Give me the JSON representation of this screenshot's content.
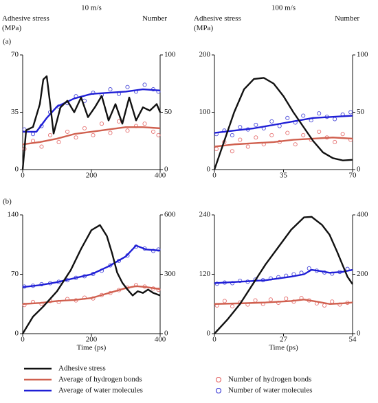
{
  "chart_data": [
    {
      "type": "line",
      "title": "10 m/s",
      "panel_label": "(a)",
      "ylabel": "Adhesive stress (MPa)",
      "y2label": "Number",
      "xlim": [
        0,
        400
      ],
      "xticks": [
        0,
        200,
        400
      ],
      "ylim": [
        0,
        70
      ],
      "yticks": [
        0,
        35,
        70
      ],
      "y2lim": [
        0,
        100
      ],
      "y2ticks": [
        0,
        50,
        100
      ],
      "series": [
        {
          "name": "Adhesive stress",
          "type": "line",
          "color": "#111111",
          "x": [
            0,
            10,
            30,
            50,
            60,
            70,
            80,
            90,
            110,
            130,
            150,
            170,
            190,
            210,
            230,
            250,
            270,
            290,
            310,
            330,
            350,
            370,
            390,
            400
          ],
          "values": [
            0,
            24,
            26,
            40,
            55,
            57,
            40,
            22,
            38,
            42,
            35,
            44,
            32,
            38,
            45,
            30,
            40,
            28,
            44,
            30,
            38,
            36,
            40,
            35
          ]
        },
        {
          "name": "Average of hydrogen bonds",
          "type": "line",
          "color": "#d0604f",
          "axis": "y2",
          "x": [
            0,
            50,
            100,
            150,
            200,
            250,
            300,
            350,
            400
          ],
          "values": [
            22,
            24,
            27,
            31,
            33,
            35,
            37,
            37,
            36
          ]
        },
        {
          "name": "Average of water molecules",
          "type": "line",
          "color": "#1f1fd6",
          "axis": "y2",
          "x": [
            0,
            40,
            70,
            100,
            150,
            200,
            250,
            300,
            350,
            400
          ],
          "values": [
            33,
            33,
            45,
            55,
            62,
            66,
            67,
            68,
            70,
            69
          ]
        },
        {
          "name": "Number of hydrogen bonds",
          "type": "scatter",
          "color": "#e05050",
          "axis": "y2",
          "x": [
            5,
            30,
            55,
            80,
            105,
            130,
            155,
            180,
            205,
            230,
            255,
            280,
            305,
            330,
            355,
            380,
            395
          ],
          "values": [
            18,
            25,
            20,
            30,
            24,
            33,
            28,
            36,
            30,
            40,
            32,
            42,
            34,
            38,
            40,
            33,
            30
          ]
        },
        {
          "name": "Number of water molecules",
          "type": "scatter",
          "color": "#2020d0",
          "axis": "y2",
          "x": [
            5,
            30,
            55,
            80,
            105,
            130,
            155,
            180,
            205,
            230,
            255,
            280,
            305,
            330,
            355,
            380,
            395
          ],
          "values": [
            35,
            31,
            38,
            50,
            55,
            58,
            64,
            60,
            67,
            65,
            70,
            66,
            72,
            68,
            74,
            70,
            68
          ]
        }
      ]
    },
    {
      "type": "line",
      "title": "100 m/s",
      "ylabel": "Adhesive stress (MPa)",
      "y2label": "Number",
      "xlim": [
        0,
        70
      ],
      "xticks": [
        0,
        35,
        70
      ],
      "ylim": [
        0,
        200
      ],
      "yticks": [
        0,
        100,
        200
      ],
      "y2lim": [
        0,
        100
      ],
      "y2ticks": [
        0,
        50,
        100
      ],
      "series": [
        {
          "type": "line",
          "color": "#111111",
          "x": [
            0,
            5,
            10,
            15,
            20,
            25,
            30,
            35,
            40,
            45,
            50,
            55,
            60,
            65,
            70
          ],
          "values": [
            0,
            50,
            100,
            140,
            158,
            160,
            150,
            128,
            100,
            75,
            50,
            30,
            20,
            16,
            17
          ]
        },
        {
          "type": "line",
          "color": "#d0604f",
          "axis": "y2",
          "x": [
            0,
            10,
            20,
            30,
            40,
            50,
            60,
            70
          ],
          "values": [
            20,
            22,
            23,
            24,
            26,
            27,
            28,
            27
          ]
        },
        {
          "type": "line",
          "color": "#1f1fd6",
          "axis": "y2",
          "x": [
            0,
            10,
            20,
            30,
            40,
            50,
            60,
            70
          ],
          "values": [
            32,
            34,
            36,
            39,
            42,
            45,
            46,
            47
          ]
        },
        {
          "type": "scatter",
          "color": "#e05050",
          "axis": "y2",
          "x": [
            1,
            5,
            9,
            13,
            17,
            21,
            25,
            29,
            33,
            37,
            41,
            45,
            49,
            53,
            57,
            61,
            65,
            69
          ],
          "values": [
            18,
            24,
            16,
            26,
            20,
            28,
            22,
            30,
            24,
            32,
            22,
            30,
            26,
            33,
            28,
            24,
            31,
            26
          ]
        },
        {
          "type": "scatter",
          "color": "#2020d0",
          "axis": "y2",
          "x": [
            1,
            5,
            9,
            13,
            17,
            21,
            25,
            29,
            33,
            37,
            41,
            45,
            49,
            53,
            57,
            61,
            65,
            69
          ],
          "values": [
            31,
            34,
            30,
            37,
            35,
            39,
            36,
            42,
            38,
            45,
            41,
            47,
            43,
            49,
            46,
            44,
            48,
            50
          ]
        }
      ]
    },
    {
      "type": "line",
      "panel_label": "(b)",
      "xlabel": "Time (ps)",
      "xlim": [
        0,
        400
      ],
      "xticks": [
        0,
        200,
        400
      ],
      "ylim": [
        0,
        140
      ],
      "yticks": [
        0,
        70,
        140
      ],
      "y2lim": [
        0,
        600
      ],
      "y2ticks": [
        0,
        300,
        600
      ],
      "series": [
        {
          "type": "line",
          "color": "#111111",
          "x": [
            0,
            30,
            60,
            100,
            140,
            170,
            200,
            225,
            245,
            260,
            275,
            290,
            305,
            320,
            335,
            350,
            365,
            380,
            400
          ],
          "values": [
            0,
            20,
            32,
            50,
            75,
            100,
            122,
            128,
            115,
            95,
            72,
            60,
            52,
            45,
            50,
            48,
            52,
            48,
            45
          ]
        },
        {
          "type": "line",
          "color": "#d0604f",
          "axis": "y2",
          "x": [
            0,
            50,
            100,
            150,
            200,
            250,
            300,
            330,
            360,
            400
          ],
          "values": [
            150,
            155,
            165,
            170,
            180,
            205,
            230,
            240,
            235,
            225
          ]
        },
        {
          "type": "line",
          "color": "#1f1fd6",
          "axis": "y2",
          "x": [
            0,
            50,
            100,
            150,
            200,
            250,
            300,
            330,
            360,
            400
          ],
          "values": [
            235,
            245,
            260,
            280,
            300,
            340,
            390,
            445,
            425,
            420
          ]
        },
        {
          "type": "scatter",
          "color": "#e05050",
          "axis": "y2",
          "x": [
            5,
            30,
            55,
            80,
            105,
            130,
            155,
            180,
            205,
            230,
            255,
            280,
            305,
            330,
            355,
            380,
            395
          ],
          "values": [
            145,
            160,
            150,
            165,
            160,
            175,
            168,
            182,
            178,
            195,
            205,
            220,
            232,
            245,
            238,
            228,
            222
          ]
        },
        {
          "type": "scatter",
          "color": "#2020d0",
          "axis": "y2",
          "x": [
            5,
            30,
            55,
            80,
            105,
            130,
            155,
            180,
            205,
            230,
            255,
            280,
            305,
            330,
            355,
            380,
            395
          ],
          "values": [
            238,
            242,
            250,
            255,
            262,
            270,
            282,
            290,
            302,
            318,
            345,
            368,
            395,
            440,
            430,
            418,
            425
          ]
        }
      ]
    },
    {
      "type": "line",
      "xlabel": "Time (ps)",
      "xlim": [
        0,
        54
      ],
      "xticks": [
        0,
        27,
        54
      ],
      "ylim": [
        0,
        240
      ],
      "yticks": [
        0,
        120,
        240
      ],
      "y2lim": [
        0,
        400
      ],
      "y2ticks": [
        0,
        200,
        400
      ],
      "series": [
        {
          "type": "line",
          "color": "#111111",
          "x": [
            0,
            5,
            10,
            15,
            20,
            25,
            30,
            35,
            38,
            42,
            45,
            48,
            50,
            52,
            54
          ],
          "values": [
            0,
            28,
            60,
            100,
            140,
            175,
            210,
            235,
            236,
            220,
            200,
            165,
            140,
            115,
            100
          ]
        },
        {
          "type": "line",
          "color": "#d0604f",
          "axis": "y2",
          "x": [
            0,
            10,
            20,
            30,
            35,
            40,
            45,
            50,
            54
          ],
          "values": [
            100,
            102,
            105,
            110,
            115,
            108,
            100,
            102,
            105
          ]
        },
        {
          "type": "line",
          "color": "#1f1fd6",
          "axis": "y2",
          "x": [
            0,
            10,
            20,
            30,
            35,
            38,
            42,
            45,
            50,
            54
          ],
          "values": [
            170,
            175,
            180,
            192,
            200,
            215,
            210,
            205,
            208,
            215
          ]
        },
        {
          "type": "scatter",
          "color": "#e05050",
          "axis": "y2",
          "x": [
            1,
            4,
            7,
            10,
            13,
            16,
            19,
            22,
            25,
            28,
            31,
            34,
            37,
            40,
            43,
            46,
            49,
            52
          ],
          "values": [
            95,
            110,
            92,
            105,
            98,
            112,
            100,
            115,
            104,
            118,
            108,
            120,
            112,
            102,
            95,
            108,
            98,
            104
          ]
        },
        {
          "type": "scatter",
          "color": "#2020d0",
          "axis": "y2",
          "x": [
            1,
            4,
            7,
            10,
            13,
            16,
            19,
            22,
            25,
            28,
            31,
            34,
            37,
            40,
            43,
            46,
            49,
            52
          ],
          "values": [
            168,
            172,
            170,
            178,
            175,
            182,
            180,
            186,
            190,
            195,
            200,
            205,
            220,
            212,
            206,
            202,
            208,
            218
          ]
        }
      ]
    }
  ]
}
